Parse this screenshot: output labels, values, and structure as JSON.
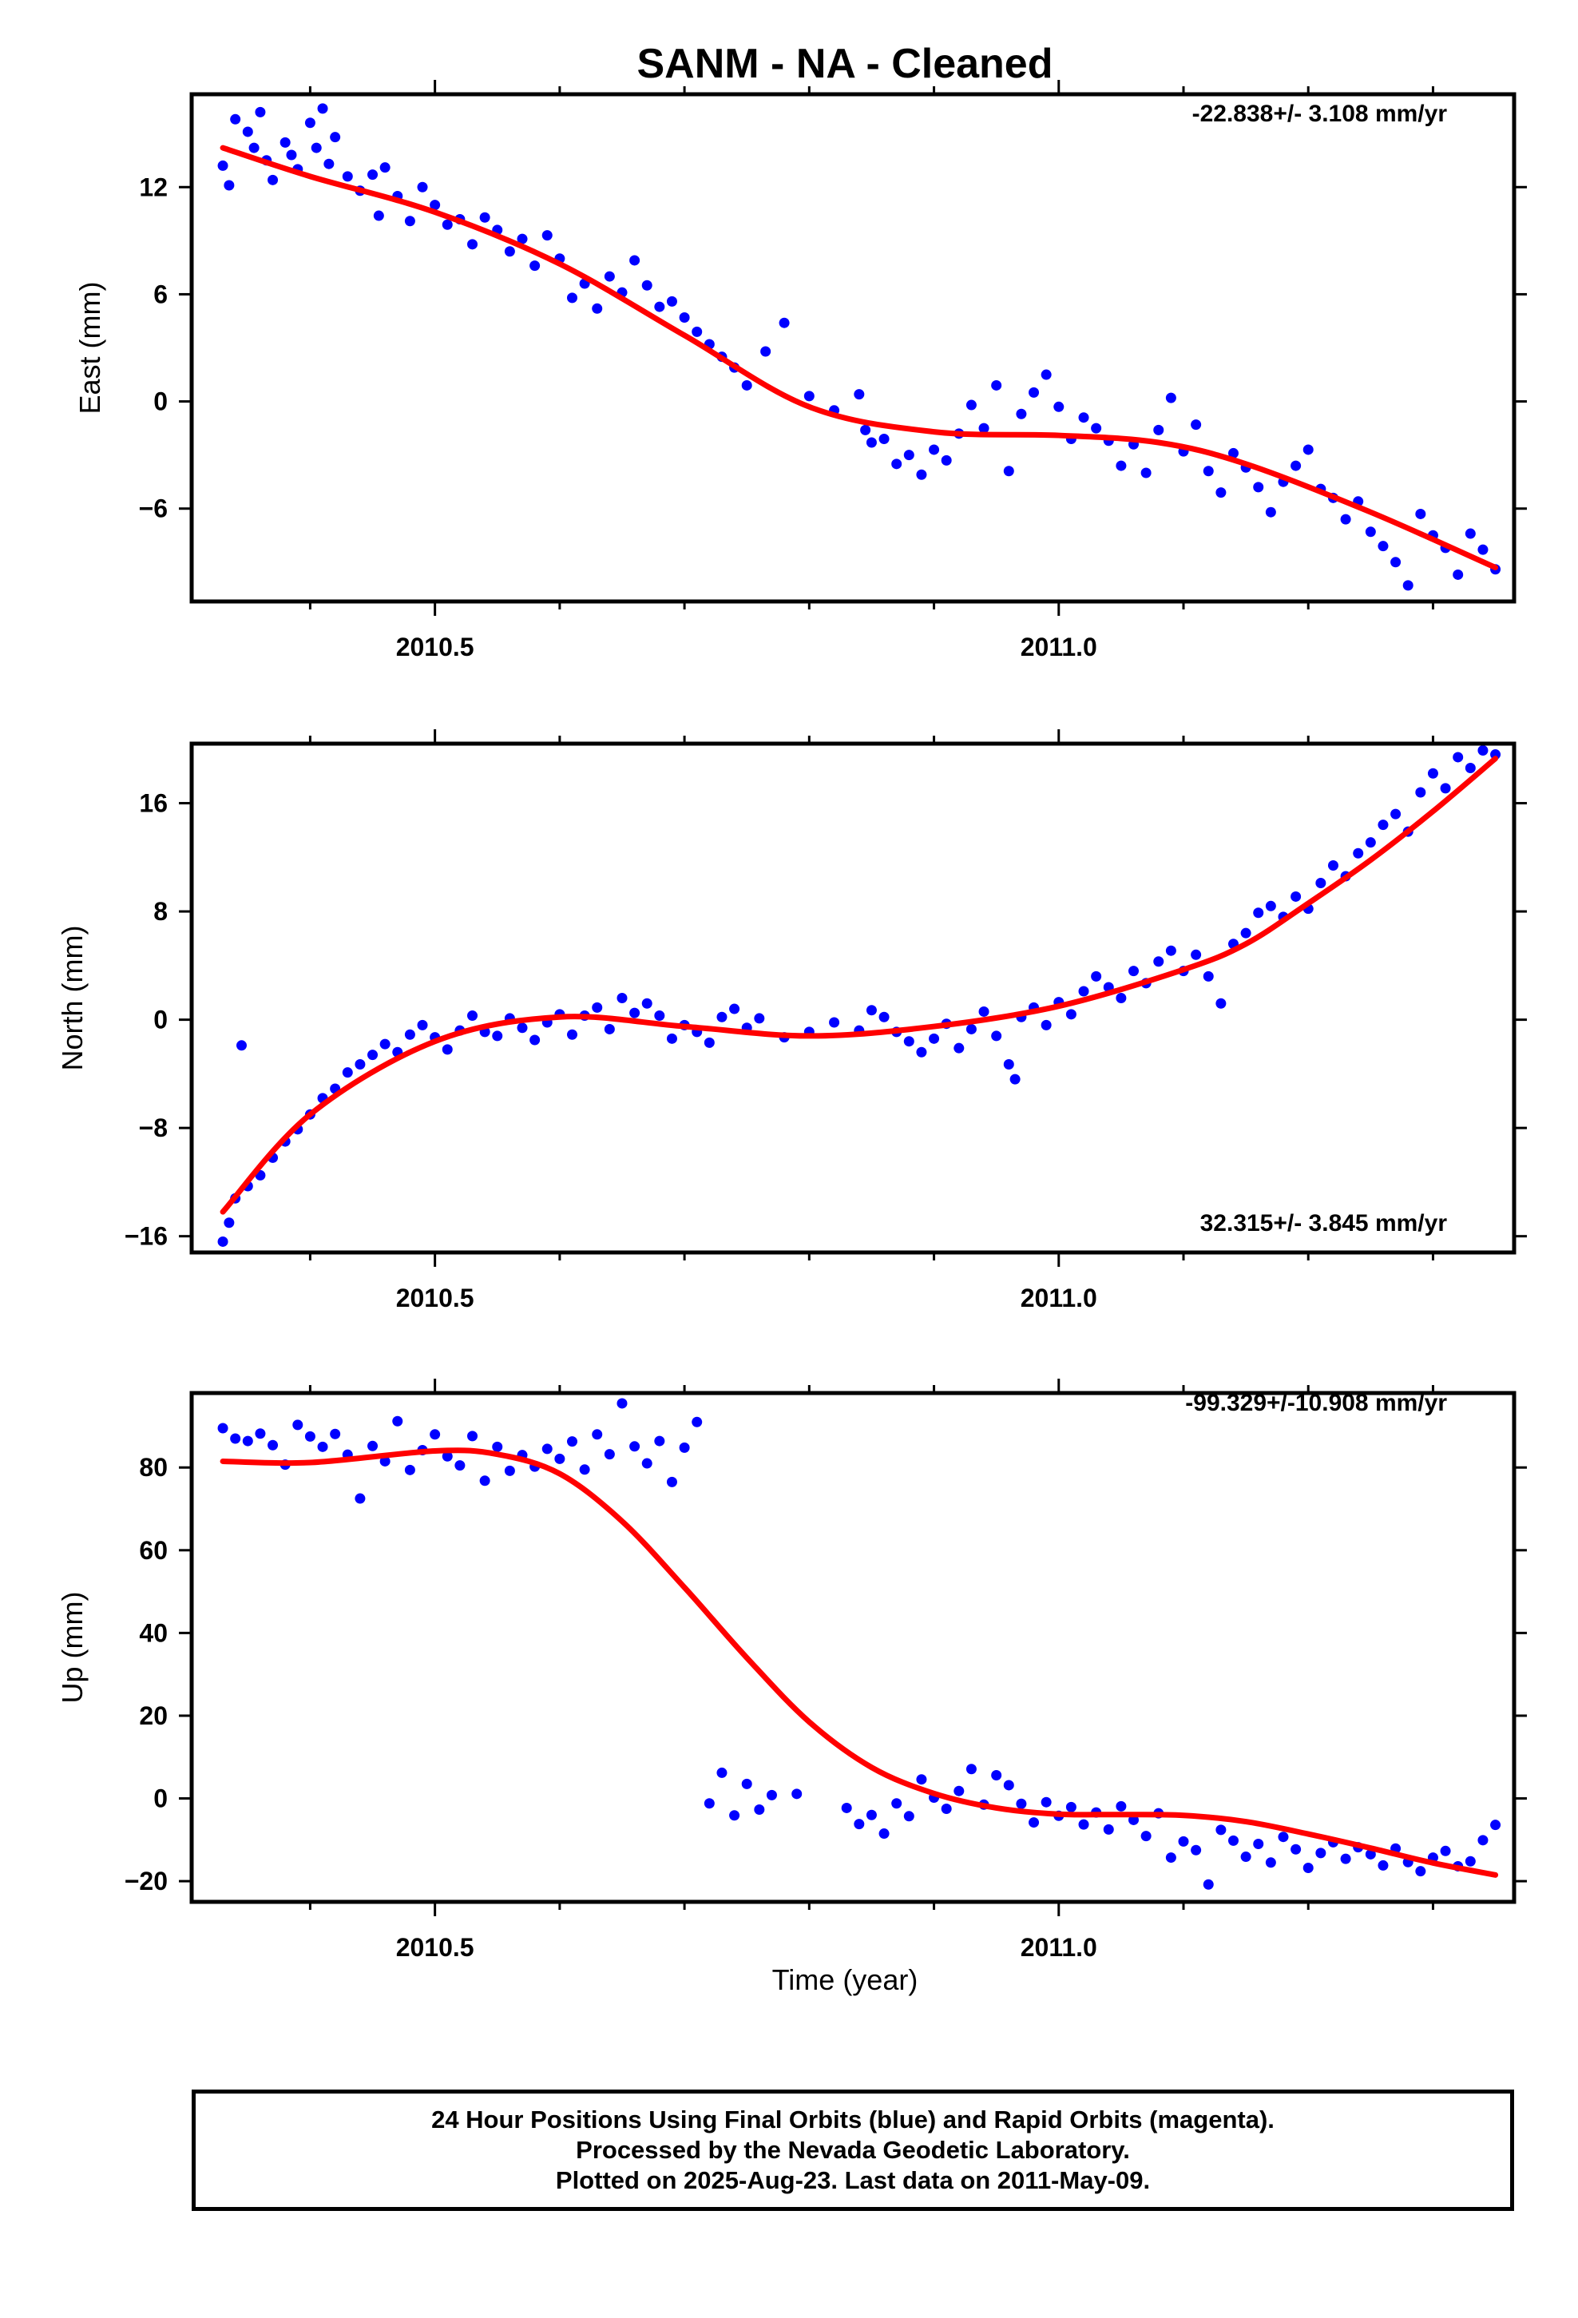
{
  "title": "SANM  - NA - Cleaned",
  "xlabel": "Time (year)",
  "footer": {
    "line1": "24 Hour Positions Using Final Orbits (blue) and Rapid Orbits (magenta).",
    "line2": "Processed by the Nevada Geodetic Laboratory.",
    "line3": "Plotted on 2025-Aug-23. Last data on 2011-May-09."
  },
  "colors": {
    "data": "#0000ff",
    "fit": "#ff0000",
    "frame": "#000000"
  },
  "chart_data": [
    {
      "type": "scatter",
      "ylabel": "East (mm)",
      "rate_label": "-22.838+/- 3.108 mm/yr",
      "xlim": [
        2010.305,
        2011.365
      ],
      "ylim": [
        -11.2,
        17.2
      ],
      "x_ticks": [
        2010.5,
        2011.0
      ],
      "x_tick_labels": [
        "2010.5",
        "2011.0"
      ],
      "y_ticks": [
        12,
        6,
        0,
        -6
      ],
      "y_tick_labels": [
        "12",
        "6",
        "0",
        "−6"
      ],
      "fit": {
        "x": [
          2010.33,
          2010.4,
          2010.5,
          2010.6,
          2010.7,
          2010.8,
          2010.9,
          2011.0,
          2011.08,
          2011.15,
          2011.25,
          2011.35
        ],
        "y": [
          14.2,
          12.6,
          10.6,
          7.7,
          3.7,
          -0.3,
          -1.7,
          -1.9,
          -2.3,
          -3.5,
          -6.2,
          -9.3
        ]
      },
      "series": [
        {
          "x": [
            2010.33,
            2010.335,
            2010.34,
            2010.35,
            2010.355,
            2010.36,
            2010.365,
            2010.37,
            2010.38,
            2010.385,
            2010.39,
            2010.4,
            2010.405,
            2010.41,
            2010.415,
            2010.42,
            2010.43,
            2010.44,
            2010.45,
            2010.455,
            2010.46,
            2010.47,
            2010.48,
            2010.49,
            2010.5,
            2010.51,
            2010.52,
            2010.53,
            2010.54,
            2010.55,
            2010.56,
            2010.57,
            2010.58,
            2010.59,
            2010.6,
            2010.61,
            2010.62,
            2010.63,
            2010.64,
            2010.65,
            2010.66,
            2010.67,
            2010.68,
            2010.69,
            2010.7,
            2010.71,
            2010.72,
            2010.73,
            2010.74,
            2010.75,
            2010.765,
            2010.78,
            2010.8,
            2010.82,
            2010.84,
            2010.845,
            2010.85,
            2010.86,
            2010.87,
            2010.88,
            2010.89,
            2010.9,
            2010.91,
            2010.92,
            2010.93,
            2010.94,
            2010.95,
            2010.96,
            2010.97,
            2010.98,
            2010.99,
            2011.0,
            2011.01,
            2011.02,
            2011.03,
            2011.04,
            2011.05,
            2011.06,
            2011.07,
            2011.08,
            2011.09,
            2011.1,
            2011.11,
            2011.12,
            2011.13,
            2011.14,
            2011.15,
            2011.16,
            2011.17,
            2011.18,
            2011.19,
            2011.2,
            2011.21,
            2011.22,
            2011.23,
            2011.24,
            2011.25,
            2011.26,
            2011.27,
            2011.28,
            2011.29,
            2011.3,
            2011.31,
            2011.32,
            2011.33,
            2011.34,
            2011.35
          ],
          "y": [
            13.2,
            12.1,
            15.8,
            15.1,
            14.2,
            16.2,
            13.5,
            12.4,
            14.5,
            13.8,
            13.0,
            15.6,
            14.2,
            16.4,
            13.3,
            14.8,
            12.6,
            11.8,
            12.7,
            10.4,
            13.1,
            11.5,
            10.1,
            12.0,
            11.0,
            9.9,
            10.2,
            8.8,
            10.3,
            9.6,
            8.4,
            9.1,
            7.6,
            9.3,
            8.0,
            5.8,
            6.6,
            5.2,
            7.0,
            6.1,
            7.9,
            6.5,
            5.3,
            5.6,
            4.7,
            3.9,
            3.2,
            2.5,
            1.9,
            0.9,
            2.8,
            4.4,
            0.3,
            -0.5,
            0.4,
            -1.6,
            -2.3,
            -2.1,
            -3.5,
            -3.0,
            -4.1,
            -2.7,
            -3.3,
            -1.8,
            -0.2,
            -1.5,
            0.9,
            -3.9,
            -0.7,
            0.5,
            1.5,
            -0.3,
            -2.1,
            -0.9,
            -1.5,
            -2.2,
            -3.6,
            -2.4,
            -4.0,
            -1.6,
            0.2,
            -2.8,
            -1.3,
            -3.9,
            -5.1,
            -2.9,
            -3.7,
            -4.8,
            -6.2,
            -4.5,
            -3.6,
            -2.7,
            -4.9,
            -5.4,
            -6.6,
            -5.6,
            -7.3,
            -8.1,
            -9.0,
            -10.3,
            -6.3,
            -7.5,
            -8.2,
            -9.7,
            -7.4,
            -8.3,
            -9.4
          ]
        }
      ]
    },
    {
      "type": "scatter",
      "ylabel": "North (mm)",
      "rate_label": "32.315+/- 3.845 mm/yr",
      "xlim": [
        2010.305,
        2011.365
      ],
      "ylim": [
        -17.2,
        20.4
      ],
      "x_ticks": [
        2010.5,
        2011.0
      ],
      "x_tick_labels": [
        "2010.5",
        "2011.0"
      ],
      "y_ticks": [
        16,
        8,
        0,
        -8,
        -16
      ],
      "y_tick_labels": [
        "16",
        "8",
        "0",
        "−8",
        "−16"
      ],
      "fit": {
        "x": [
          2010.33,
          2010.4,
          2010.5,
          2010.6,
          2010.7,
          2010.8,
          2010.9,
          2011.0,
          2011.1,
          2011.15,
          2011.2,
          2011.25,
          2011.3,
          2011.35
        ],
        "y": [
          -14.2,
          -7.0,
          -1.6,
          0.2,
          -0.5,
          -1.2,
          -0.5,
          1.0,
          3.7,
          5.6,
          8.6,
          11.8,
          15.4,
          19.3
        ]
      },
      "series": [
        {
          "x": [
            2010.33,
            2010.335,
            2010.34,
            2010.345,
            2010.35,
            2010.36,
            2010.37,
            2010.38,
            2010.39,
            2010.4,
            2010.41,
            2010.42,
            2010.43,
            2010.44,
            2010.45,
            2010.46,
            2010.47,
            2010.48,
            2010.49,
            2010.5,
            2010.51,
            2010.52,
            2010.53,
            2010.54,
            2010.55,
            2010.56,
            2010.57,
            2010.58,
            2010.59,
            2010.6,
            2010.61,
            2010.62,
            2010.63,
            2010.64,
            2010.65,
            2010.66,
            2010.67,
            2010.68,
            2010.69,
            2010.7,
            2010.71,
            2010.72,
            2010.73,
            2010.74,
            2010.75,
            2010.76,
            2010.78,
            2010.8,
            2010.82,
            2010.84,
            2010.85,
            2010.86,
            2010.87,
            2010.88,
            2010.89,
            2010.9,
            2010.91,
            2010.92,
            2010.93,
            2010.94,
            2010.95,
            2010.96,
            2010.965,
            2010.97,
            2010.98,
            2010.99,
            2011.0,
            2011.01,
            2011.02,
            2011.03,
            2011.04,
            2011.05,
            2011.06,
            2011.07,
            2011.08,
            2011.09,
            2011.1,
            2011.11,
            2011.12,
            2011.13,
            2011.14,
            2011.15,
            2011.16,
            2011.17,
            2011.18,
            2011.19,
            2011.2,
            2011.21,
            2011.22,
            2011.23,
            2011.24,
            2011.25,
            2011.26,
            2011.27,
            2011.28,
            2011.29,
            2011.3,
            2011.31,
            2011.32,
            2011.33,
            2011.34,
            2011.35
          ],
          "y": [
            -16.4,
            -15.0,
            -13.2,
            -1.9,
            -12.3,
            -11.5,
            -10.2,
            -9.0,
            -8.1,
            -7.0,
            -5.8,
            -5.1,
            -3.9,
            -3.3,
            -2.6,
            -1.8,
            -2.4,
            -1.1,
            -0.4,
            -1.3,
            -2.2,
            -0.8,
            0.3,
            -0.9,
            -1.2,
            0.1,
            -0.6,
            -1.5,
            -0.2,
            0.4,
            -1.1,
            0.3,
            0.9,
            -0.7,
            1.6,
            0.5,
            1.2,
            0.3,
            -1.4,
            -0.4,
            -0.9,
            -1.7,
            0.2,
            0.8,
            -0.6,
            0.1,
            -1.3,
            -0.9,
            -0.2,
            -0.8,
            0.7,
            0.2,
            -0.9,
            -1.6,
            -2.4,
            -1.4,
            -0.3,
            -2.1,
            -0.7,
            0.6,
            -1.2,
            -3.3,
            -4.4,
            0.2,
            0.9,
            -0.4,
            1.3,
            0.4,
            2.1,
            3.2,
            2.4,
            1.6,
            3.6,
            2.7,
            4.3,
            5.1,
            3.6,
            4.8,
            3.2,
            1.2,
            5.6,
            6.4,
            7.9,
            8.4,
            7.6,
            9.1,
            8.2,
            10.1,
            11.4,
            10.6,
            12.3,
            13.1,
            14.4,
            15.2,
            13.9,
            16.8,
            18.2,
            17.1,
            19.4,
            18.6,
            19.9,
            19.6
          ]
        }
      ]
    },
    {
      "type": "scatter",
      "ylabel": "Up (mm)",
      "rate_label": "-99.329+/-10.908 mm/yr",
      "xlim": [
        2010.305,
        2011.365
      ],
      "ylim": [
        -25,
        98
      ],
      "x_ticks": [
        2010.5,
        2011.0
      ],
      "x_tick_labels": [
        "2010.5",
        "2011.0"
      ],
      "y_ticks": [
        80,
        60,
        40,
        20,
        0,
        -20
      ],
      "y_tick_labels": [
        "80",
        "60",
        "40",
        "20",
        "0",
        "−20"
      ],
      "fit": {
        "x": [
          2010.33,
          2010.4,
          2010.5,
          2010.55,
          2010.6,
          2010.65,
          2010.7,
          2010.75,
          2010.8,
          2010.85,
          2010.9,
          2010.95,
          2011.0,
          2011.05,
          2011.1,
          2011.15,
          2011.2,
          2011.25,
          2011.3,
          2011.35
        ],
        "y": [
          81.5,
          81.2,
          84.0,
          83.2,
          78.5,
          67.0,
          51.0,
          34.0,
          18.5,
          7.5,
          1.2,
          -2.3,
          -3.8,
          -3.9,
          -4.1,
          -5.6,
          -8.6,
          -12.0,
          -15.6,
          -18.5
        ]
      },
      "series": [
        {
          "x": [
            2010.33,
            2010.34,
            2010.35,
            2010.36,
            2010.37,
            2010.38,
            2010.39,
            2010.4,
            2010.41,
            2010.42,
            2010.43,
            2010.44,
            2010.45,
            2010.46,
            2010.47,
            2010.48,
            2010.49,
            2010.5,
            2010.51,
            2010.52,
            2010.53,
            2010.54,
            2010.55,
            2010.56,
            2010.57,
            2010.58,
            2010.59,
            2010.6,
            2010.61,
            2010.62,
            2010.63,
            2010.64,
            2010.65,
            2010.66,
            2010.67,
            2010.68,
            2010.69,
            2010.7,
            2010.71,
            2010.72,
            2010.73,
            2010.74,
            2010.75,
            2010.76,
            2010.77,
            2010.79,
            2010.83,
            2010.84,
            2010.85,
            2010.86,
            2010.87,
            2010.88,
            2010.89,
            2010.9,
            2010.91,
            2010.92,
            2010.93,
            2010.94,
            2010.95,
            2010.96,
            2010.97,
            2010.98,
            2010.99,
            2011.0,
            2011.01,
            2011.02,
            2011.03,
            2011.04,
            2011.05,
            2011.06,
            2011.07,
            2011.08,
            2011.09,
            2011.1,
            2011.11,
            2011.12,
            2011.13,
            2011.14,
            2011.15,
            2011.16,
            2011.17,
            2011.18,
            2011.19,
            2011.2,
            2011.21,
            2011.22,
            2011.23,
            2011.24,
            2011.25,
            2011.26,
            2011.27,
            2011.28,
            2011.29,
            2011.3,
            2011.31,
            2011.32,
            2011.33,
            2011.34,
            2011.35
          ],
          "y": [
            89.5,
            87.0,
            86.4,
            88.2,
            85.4,
            80.7,
            90.3,
            87.5,
            85.0,
            88.1,
            83.1,
            72.5,
            85.2,
            81.5,
            91.2,
            79.4,
            84.2,
            88.0,
            82.7,
            80.5,
            87.6,
            76.8,
            85.0,
            79.2,
            83.0,
            80.2,
            84.5,
            82.1,
            86.3,
            79.5,
            88.0,
            83.2,
            95.5,
            85.1,
            81.0,
            86.4,
            76.5,
            84.8,
            91.0,
            -1.2,
            6.2,
            -4.1,
            3.5,
            -2.7,
            0.8,
            1.1,
            -2.3,
            -6.2,
            -4.0,
            -8.5,
            -1.2,
            -4.3,
            4.6,
            0.2,
            -2.5,
            1.8,
            7.1,
            -1.5,
            5.6,
            3.2,
            -1.3,
            -5.8,
            -0.9,
            -4.2,
            -2.1,
            -6.3,
            -3.4,
            -7.5,
            -1.9,
            -5.2,
            -9.1,
            -3.6,
            -14.3,
            -10.4,
            -12.5,
            -20.8,
            -7.6,
            -10.2,
            -14.1,
            -11.0,
            -15.5,
            -9.3,
            -12.3,
            -16.8,
            -13.2,
            -10.6,
            -14.6,
            -11.8,
            -13.5,
            -16.2,
            -12.1,
            -15.4,
            -17.6,
            -14.3,
            -12.7,
            -16.4,
            -15.2,
            -10.1,
            -6.4
          ]
        }
      ]
    }
  ]
}
